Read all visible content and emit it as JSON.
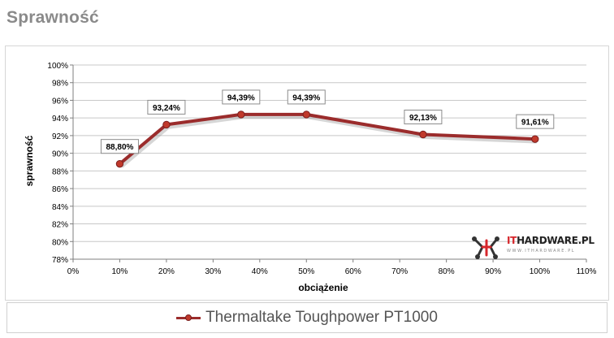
{
  "page": {
    "title": "Sprawność"
  },
  "legend": {
    "label": "Thermaltake Toughpower PT1000"
  },
  "watermark": {
    "brand_prefix": "IT",
    "brand_rest": "HARDWARE.PL",
    "url": "WWW.ITHARDWARE.PL"
  },
  "colors": {
    "series": "#9b2c2c",
    "marker_fill": "#c0392b",
    "grid": "#c8c8c8",
    "axis": "#7f7f7f"
  },
  "chart_data": {
    "type": "line",
    "title": "",
    "xlabel": "obciążenie",
    "ylabel": "sprawność",
    "xlim": [
      0,
      110
    ],
    "ylim": [
      78,
      100
    ],
    "x_ticks": [
      0,
      10,
      20,
      30,
      40,
      50,
      60,
      70,
      80,
      90,
      100,
      110
    ],
    "x_tick_labels": [
      "0%",
      "10%",
      "20%",
      "30%",
      "40%",
      "50%",
      "60%",
      "70%",
      "80%",
      "90%",
      "100%",
      "110%"
    ],
    "y_ticks": [
      78,
      80,
      82,
      84,
      86,
      88,
      90,
      92,
      94,
      96,
      98,
      100
    ],
    "y_tick_labels": [
      "78%",
      "80%",
      "82%",
      "84%",
      "86%",
      "88%",
      "90%",
      "92%",
      "94%",
      "96%",
      "98%",
      "100%"
    ],
    "grid": "horizontal",
    "legend_position": "bottom",
    "series": [
      {
        "name": "Thermaltake Toughpower PT1000",
        "x": [
          10,
          20,
          36,
          50,
          75,
          99
        ],
        "y": [
          88.8,
          93.24,
          94.39,
          94.39,
          92.13,
          91.61
        ],
        "labels": [
          "88,80%",
          "93,24%",
          "94,39%",
          "94,39%",
          "92,13%",
          "91,61%"
        ]
      }
    ]
  }
}
